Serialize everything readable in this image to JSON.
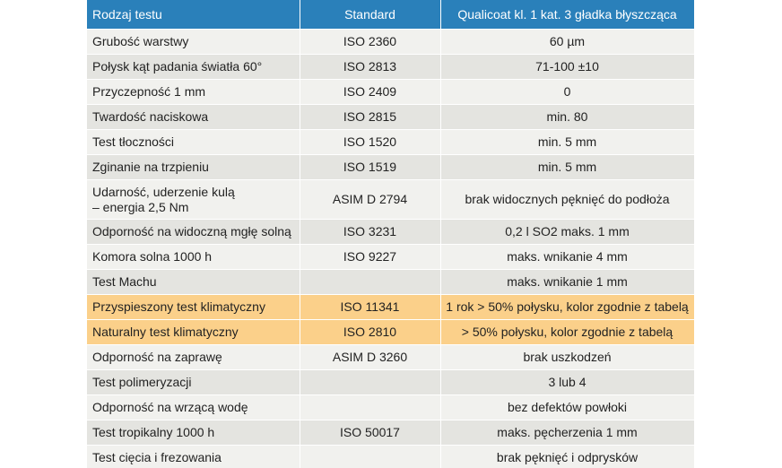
{
  "header": {
    "col1": "Rodzaj testu",
    "col2": "Standard",
    "col3": "Qualicoat kl. 1 kat. 3 gładka błyszcząca"
  },
  "rows": [
    {
      "test": "Grubość warstwy",
      "standard": "ISO 2360",
      "value": "60 µm"
    },
    {
      "test": "Połysk kąt padania światła 60°",
      "standard": "ISO 2813",
      "value": "71-100 ±10"
    },
    {
      "test": "Przyczepność 1 mm",
      "standard": "ISO 2409",
      "value": "0"
    },
    {
      "test": "Twardość naciskowa",
      "standard": "ISO 2815",
      "value": "min. 80"
    },
    {
      "test": "Test tłoczności",
      "standard": "ISO 1520",
      "value": "min. 5 mm"
    },
    {
      "test": "Zginanie na trzpieniu",
      "standard": "ISO 1519",
      "value": "min. 5 mm"
    },
    {
      "test_line1": "Udarność, uderzenie kulą",
      "test_line2": "– energia 2,5 Nm",
      "standard": "ASIM D 2794",
      "value": "brak widocznych pęknięć do podłoża"
    },
    {
      "test": "Odporność na widoczną mgłę solną",
      "standard": "ISO 3231",
      "value": "0,2 l SO2 maks. 1 mm"
    },
    {
      "test": "Komora solna 1000 h",
      "standard": "ISO 9227",
      "value": "maks. wnikanie 4 mm"
    },
    {
      "test": "Test Machu",
      "standard": "",
      "value": "maks. wnikanie 1 mm"
    },
    {
      "test": "Przyspieszony test klimatyczny",
      "standard": "ISO 11341",
      "value": "1 rok  > 50% połysku, kolor zgodnie z tabelą"
    },
    {
      "test": "Naturalny test klimatyczny",
      "standard": "ISO 2810",
      "value": "> 50% połysku, kolor zgodnie z tabelą"
    },
    {
      "test": "Odporność na zaprawę",
      "standard": "ASIM D 3260",
      "value": "brak uszkodzeń"
    },
    {
      "test": "Test polimeryzacji",
      "standard": "",
      "value": "3 lub 4"
    },
    {
      "test": "Odporność na wrzącą wodę",
      "standard": "",
      "value": "bez defektów powłoki"
    },
    {
      "test": "Test tropikalny 1000 h",
      "standard": "ISO 50017",
      "value": "maks. pęcherzenia 1 mm"
    },
    {
      "test": "Test cięcia i frezowania",
      "standard": "",
      "value": "brak pęknięć i odprysków"
    }
  ],
  "colors": {
    "header": "#2a80ba",
    "row_light": "#f1f1ee",
    "row_dark": "#e4e4e0",
    "highlight": "#fbd08a"
  }
}
